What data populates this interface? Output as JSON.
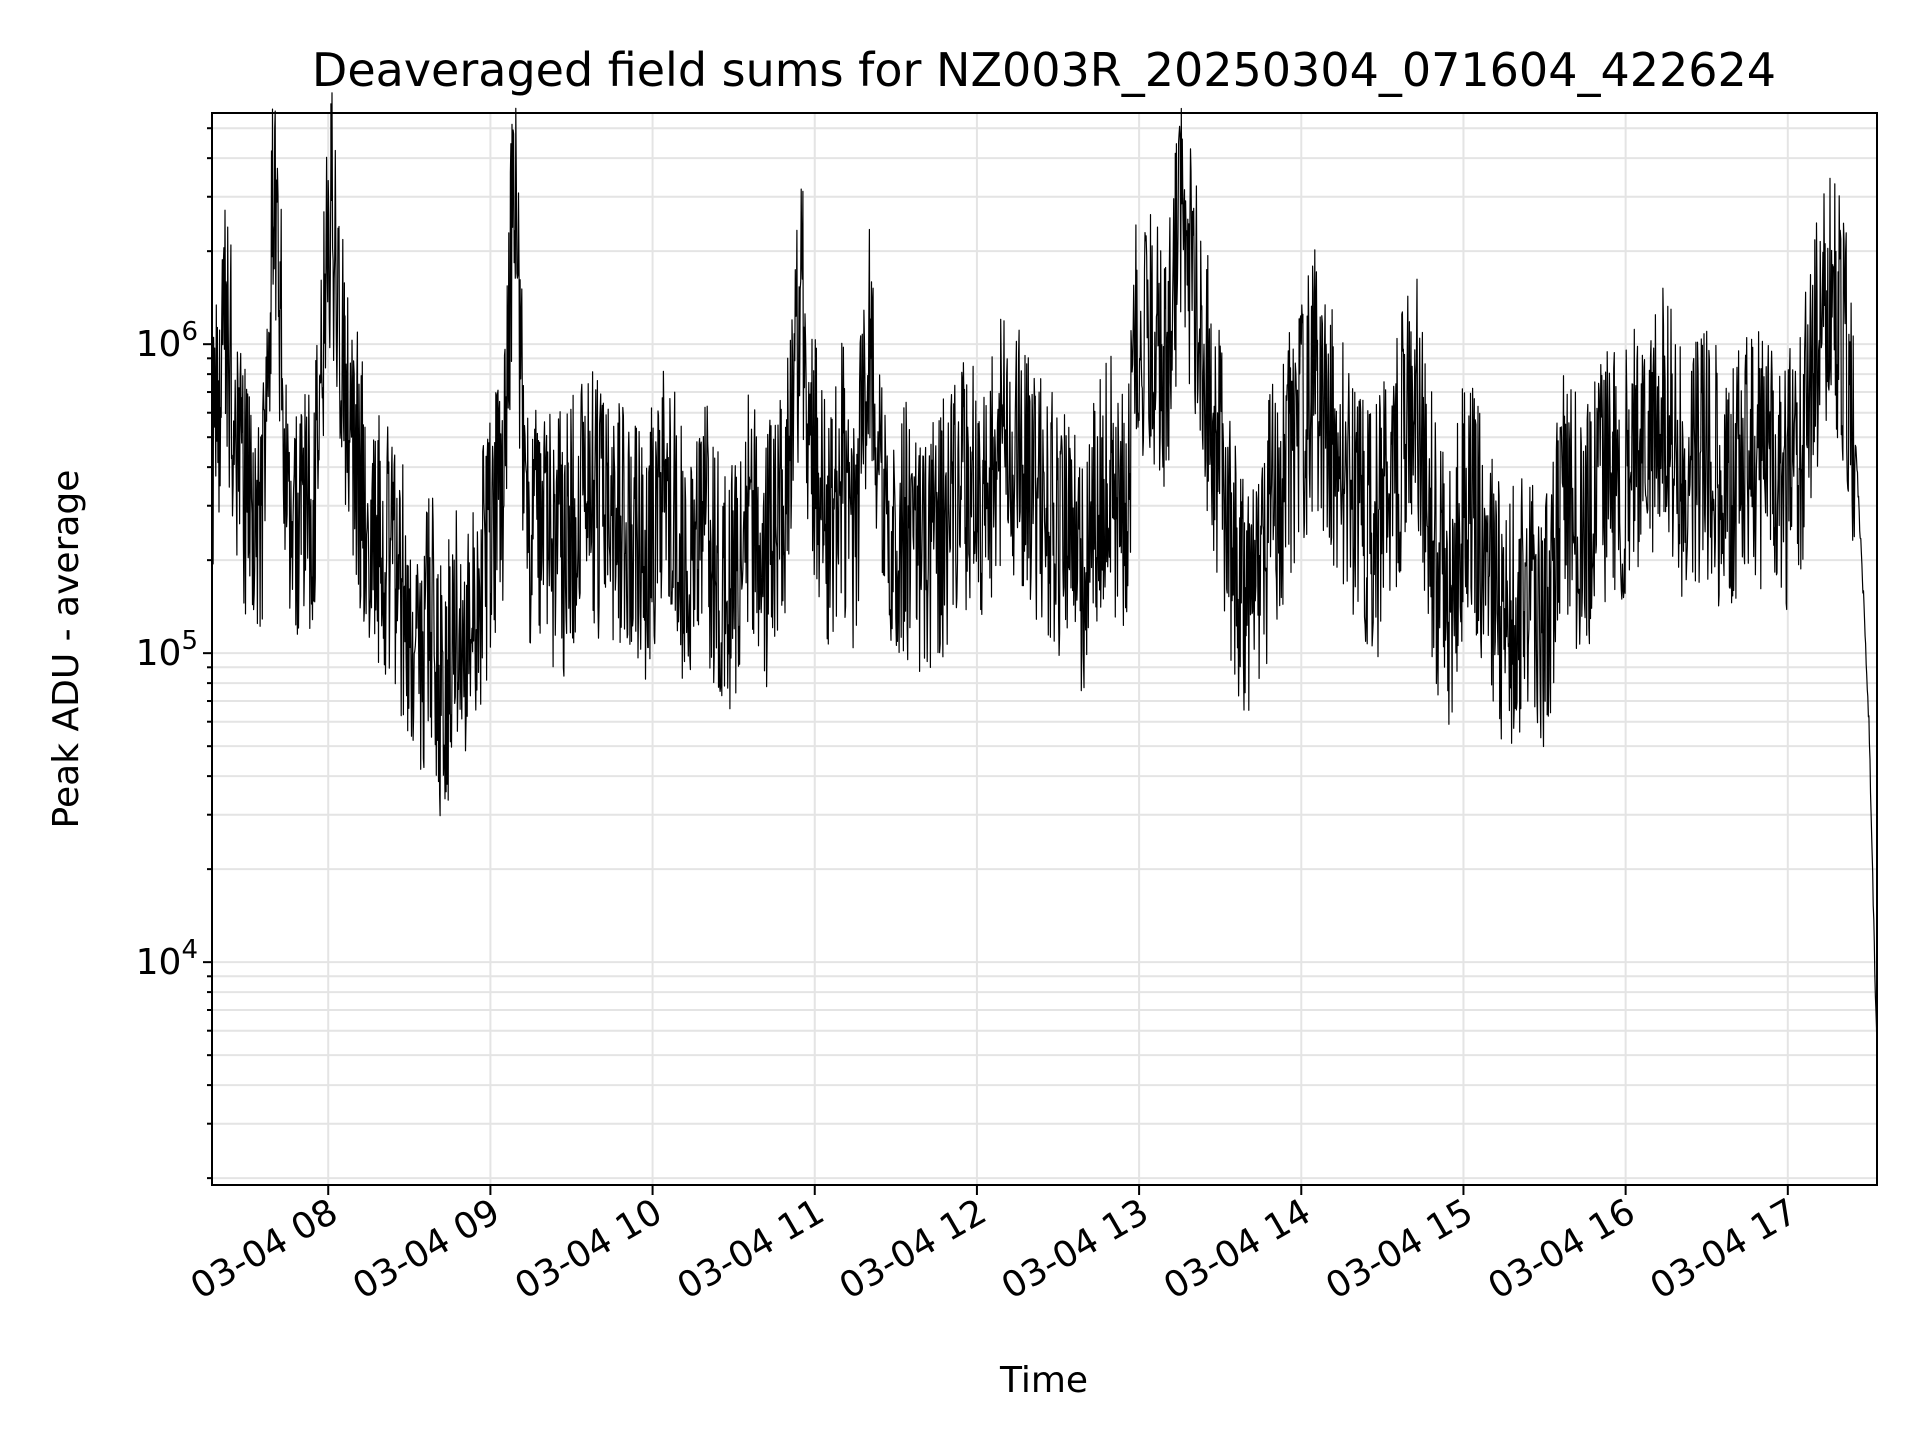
{
  "chart_data": {
    "type": "line",
    "title": "Deaveraged field sums for NZ003R_20250304_071604_422624",
    "xlabel": "Time",
    "ylabel": "Peak ADU - average",
    "yscale": "log",
    "ylim": [
      1900,
      5600000
    ],
    "xlim": [
      "2025-03-04 07:17",
      "2025-03-04 17:33"
    ],
    "x_ticks": [
      {
        "value": "2025-03-04 08:00",
        "label": "03-04 08"
      },
      {
        "value": "2025-03-04 09:00",
        "label": "03-04 09"
      },
      {
        "value": "2025-03-04 10:00",
        "label": "03-04 10"
      },
      {
        "value": "2025-03-04 11:00",
        "label": "03-04 11"
      },
      {
        "value": "2025-03-04 12:00",
        "label": "03-04 12"
      },
      {
        "value": "2025-03-04 13:00",
        "label": "03-04 13"
      },
      {
        "value": "2025-03-04 14:00",
        "label": "03-04 14"
      },
      {
        "value": "2025-03-04 15:00",
        "label": "03-04 15"
      },
      {
        "value": "2025-03-04 16:00",
        "label": "03-04 16"
      },
      {
        "value": "2025-03-04 17:00",
        "label": "03-04 17"
      }
    ],
    "y_ticks": [
      {
        "value": 10000,
        "base": "10",
        "exp": "4"
      },
      {
        "value": 100000,
        "base": "10",
        "exp": "5"
      },
      {
        "value": 1000000,
        "base": "10",
        "exp": "6"
      }
    ],
    "grid": true,
    "line_color": "#000000",
    "series": [
      {
        "x": [
          "07:17",
          "07:22",
          "07:28",
          "07:35",
          "07:40",
          "07:46",
          "07:50",
          "07:55",
          "08:01",
          "08:06",
          "08:12",
          "08:18",
          "08:25",
          "08:30",
          "08:35",
          "08:38",
          "08:42",
          "08:48",
          "08:55",
          "09:00",
          "09:05",
          "09:09",
          "09:13",
          "09:20",
          "09:28",
          "09:35",
          "09:42",
          "09:50",
          "09:58",
          "10:05",
          "10:12",
          "10:20",
          "10:28",
          "10:35",
          "10:42",
          "10:50",
          "10:55",
          "10:58",
          "11:04",
          "11:10",
          "11:15",
          "11:20",
          "11:26",
          "11:33",
          "11:40",
          "11:47",
          "11:55",
          "12:02",
          "12:10",
          "12:18",
          "12:25",
          "12:32",
          "12:40",
          "12:48",
          "12:55",
          "12:59",
          "13:05",
          "13:10",
          "13:15",
          "13:20",
          "13:27",
          "13:35",
          "13:42",
          "13:50",
          "13:57",
          "14:05",
          "14:12",
          "14:20",
          "14:28",
          "14:35",
          "14:42",
          "14:50",
          "14:55",
          "15:00",
          "15:07",
          "15:15",
          "15:22",
          "15:30",
          "15:37",
          "15:45",
          "15:52",
          "16:00",
          "16:08",
          "16:15",
          "16:22",
          "16:30",
          "16:38",
          "16:45",
          "16:52",
          "17:00",
          "17:05",
          "17:10",
          "17:15",
          "17:20",
          "17:25",
          "17:28",
          "17:30",
          "17:33"
        ],
        "y": [
          400000,
          1200000,
          350000,
          250000,
          3500000,
          220000,
          260000,
          300000,
          2900000,
          800000,
          350000,
          250000,
          200000,
          120000,
          90000,
          140000,
          70000,
          120000,
          130000,
          250000,
          400000,
          3800000,
          300000,
          250000,
          220000,
          400000,
          250000,
          300000,
          200000,
          450000,
          180000,
          250000,
          150000,
          300000,
          200000,
          350000,
          1400000,
          600000,
          250000,
          400000,
          200000,
          1200000,
          300000,
          250000,
          200000,
          250000,
          350000,
          300000,
          500000,
          400000,
          300000,
          250000,
          180000,
          400000,
          250000,
          1200000,
          1100000,
          800000,
          2500000,
          1500000,
          600000,
          200000,
          150000,
          300000,
          450000,
          800000,
          500000,
          300000,
          250000,
          400000,
          700000,
          200000,
          150000,
          300000,
          250000,
          120000,
          150000,
          130000,
          300000,
          250000,
          350000,
          400000,
          500000,
          600000,
          350000,
          450000,
          300000,
          500000,
          400000,
          350000,
          450000,
          900000,
          1400000,
          1200000,
          500000,
          150000,
          60000,
          5000
        ]
      }
    ]
  }
}
